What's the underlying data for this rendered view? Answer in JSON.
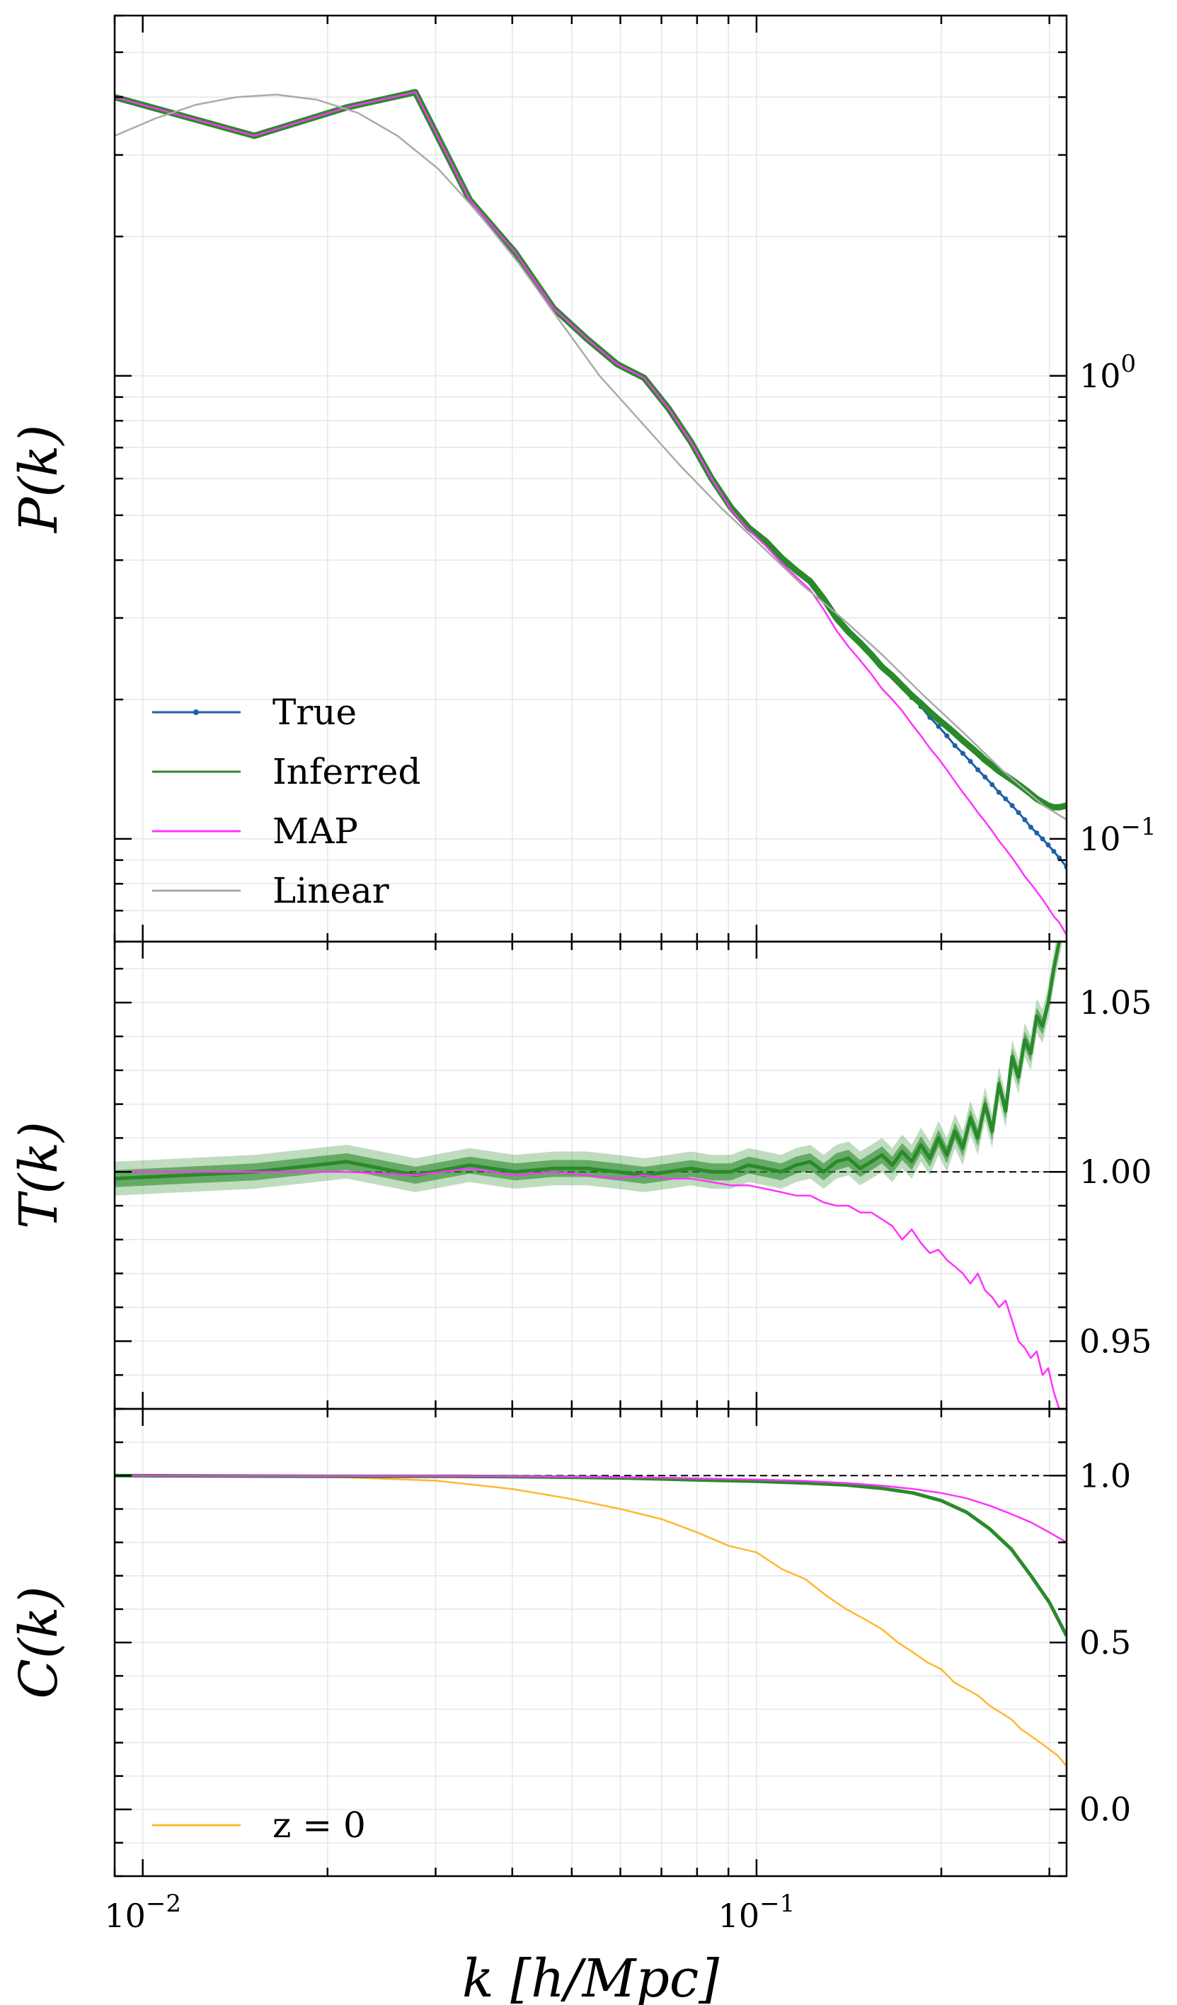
{
  "figure": {
    "xlabel": "k [h/Mpc]",
    "x_ticks": [
      {
        "value": 0.01,
        "base": "10",
        "exp": "−2"
      },
      {
        "value": 0.1,
        "base": "10",
        "exp": "−1"
      }
    ],
    "xlim": [
      0.009,
      0.32
    ],
    "xscale": "log",
    "grid": true
  },
  "chart_data": [
    {
      "panel": "power_spectrum",
      "type": "line",
      "ylabel": "P(k)",
      "yscale": "log",
      "ylim": [
        0.06,
        6.0
      ],
      "y_ticks": [
        {
          "value": 1.0,
          "base": "10",
          "exp": "0"
        },
        {
          "value": 0.1,
          "base": "10",
          "exp": "−1"
        }
      ],
      "legend": {
        "placement": "lower-left",
        "entries": [
          "True",
          "Inferred",
          "MAP",
          "Linear"
        ]
      },
      "series": [
        {
          "name": "True",
          "color": "#1f5fa8",
          "marker": "dot",
          "x": [
            0.009,
            0.0152,
            0.0215,
            0.0278,
            0.0341,
            0.0404,
            0.0467,
            0.053,
            0.0593,
            0.0656,
            0.0719,
            0.0782,
            0.0845,
            0.0908,
            0.0971,
            0.1034,
            0.1097,
            0.116,
            0.1223,
            0.1286,
            0.1349,
            0.1412,
            0.1475,
            0.1538,
            0.1601,
            0.1664,
            0.1727,
            0.179,
            0.1853,
            0.1916,
            0.1979,
            0.2042,
            0.2105,
            0.2168,
            0.2231,
            0.2294,
            0.2357,
            0.242,
            0.2483,
            0.2546,
            0.2609,
            0.2672,
            0.2735,
            0.2798,
            0.2861,
            0.2924,
            0.2987,
            0.305,
            0.3113,
            0.32
          ],
          "y": [
            4.0,
            3.3,
            3.8,
            4.1,
            2.4,
            1.85,
            1.4,
            1.2,
            1.06,
            0.99,
            0.85,
            0.72,
            0.6,
            0.52,
            0.47,
            0.44,
            0.405,
            0.38,
            0.36,
            0.33,
            0.3,
            0.28,
            0.265,
            0.25,
            0.235,
            0.225,
            0.214,
            0.202,
            0.193,
            0.183,
            0.175,
            0.167,
            0.159,
            0.153,
            0.147,
            0.141,
            0.136,
            0.131,
            0.126,
            0.122,
            0.118,
            0.114,
            0.11,
            0.106,
            0.103,
            0.1,
            0.097,
            0.094,
            0.091,
            0.087
          ]
        },
        {
          "name": "Inferred",
          "color": "#2a8a2a",
          "x": [
            0.009,
            0.0152,
            0.0215,
            0.0278,
            0.0341,
            0.0404,
            0.0467,
            0.053,
            0.0593,
            0.0656,
            0.0719,
            0.0782,
            0.0845,
            0.0908,
            0.0971,
            0.1034,
            0.1097,
            0.116,
            0.1223,
            0.1286,
            0.1349,
            0.1412,
            0.1475,
            0.1538,
            0.1601,
            0.1664,
            0.1727,
            0.179,
            0.1853,
            0.1916,
            0.1979,
            0.2042,
            0.2105,
            0.2168,
            0.2231,
            0.2294,
            0.2357,
            0.242,
            0.2483,
            0.2546,
            0.2609,
            0.2672,
            0.2735,
            0.2798,
            0.2861,
            0.2924,
            0.2987,
            0.305,
            0.3113,
            0.32
          ],
          "y": [
            4.0,
            3.3,
            3.8,
            4.1,
            2.4,
            1.85,
            1.4,
            1.2,
            1.06,
            0.99,
            0.85,
            0.72,
            0.6,
            0.52,
            0.47,
            0.44,
            0.405,
            0.38,
            0.36,
            0.33,
            0.3,
            0.28,
            0.265,
            0.25,
            0.235,
            0.225,
            0.214,
            0.204,
            0.196,
            0.188,
            0.181,
            0.175,
            0.169,
            0.163,
            0.158,
            0.153,
            0.148,
            0.144,
            0.14,
            0.137,
            0.134,
            0.131,
            0.128,
            0.125,
            0.122,
            0.12,
            0.118,
            0.117,
            0.117,
            0.118
          ]
        },
        {
          "name": "MAP",
          "color": "#ff33ff",
          "x": [
            0.009,
            0.0152,
            0.0215,
            0.0278,
            0.0341,
            0.0404,
            0.0467,
            0.053,
            0.0593,
            0.0656,
            0.0719,
            0.0782,
            0.0845,
            0.0908,
            0.0971,
            0.1034,
            0.1097,
            0.116,
            0.1223,
            0.1286,
            0.1349,
            0.1412,
            0.1475,
            0.1538,
            0.1601,
            0.1664,
            0.1727,
            0.179,
            0.1853,
            0.1916,
            0.1979,
            0.2042,
            0.2105,
            0.2168,
            0.2231,
            0.2294,
            0.2357,
            0.242,
            0.2483,
            0.2546,
            0.2609,
            0.2672,
            0.2735,
            0.2798,
            0.2861,
            0.2924,
            0.2987,
            0.305,
            0.3113,
            0.32
          ],
          "y": [
            4.0,
            3.3,
            3.8,
            4.1,
            2.4,
            1.85,
            1.4,
            1.2,
            1.06,
            0.99,
            0.85,
            0.72,
            0.6,
            0.515,
            0.465,
            0.43,
            0.395,
            0.368,
            0.345,
            0.313,
            0.282,
            0.26,
            0.243,
            0.227,
            0.211,
            0.2,
            0.189,
            0.177,
            0.167,
            0.157,
            0.149,
            0.141,
            0.133,
            0.126,
            0.12,
            0.114,
            0.109,
            0.104,
            0.099,
            0.095,
            0.091,
            0.087,
            0.083,
            0.08,
            0.077,
            0.074,
            0.071,
            0.068,
            0.066,
            0.062
          ]
        },
        {
          "name": "Linear",
          "color": "#aaaaaa",
          "x": [
            0.009,
            0.0105,
            0.0122,
            0.0142,
            0.0165,
            0.0192,
            0.0224,
            0.026,
            0.0303,
            0.0352,
            0.041,
            0.0477,
            0.0555,
            0.0646,
            0.0751,
            0.0874,
            0.1017,
            0.1183,
            0.1377,
            0.1602,
            0.1864,
            0.2169,
            0.2524,
            0.2937,
            0.32
          ],
          "y": [
            3.3,
            3.6,
            3.85,
            4.0,
            4.05,
            3.95,
            3.7,
            3.3,
            2.8,
            2.25,
            1.75,
            1.32,
            1.0,
            0.8,
            0.64,
            0.52,
            0.43,
            0.355,
            0.3,
            0.25,
            0.205,
            0.17,
            0.14,
            0.118,
            0.11
          ]
        }
      ]
    },
    {
      "panel": "transfer_function",
      "type": "line",
      "ylabel": "T(k)",
      "ylim": [
        0.93,
        1.068
      ],
      "y_ticks": [
        {
          "value": 1.05,
          "label": "1.05"
        },
        {
          "value": 1.0,
          "label": "1.00"
        },
        {
          "value": 0.95,
          "label": "0.95"
        }
      ],
      "reference_line": 1.0,
      "series": [
        {
          "name": "Inferred",
          "color": "#2a8a2a",
          "x": [
            0.009,
            0.0152,
            0.0215,
            0.0278,
            0.0341,
            0.0404,
            0.0467,
            0.053,
            0.0593,
            0.0656,
            0.0719,
            0.0782,
            0.0845,
            0.0908,
            0.0971,
            0.1034,
            0.1097,
            0.116,
            0.1223,
            0.1286,
            0.1349,
            0.1412,
            0.1475,
            0.1538,
            0.1601,
            0.1664,
            0.1727,
            0.179,
            0.1853,
            0.1916,
            0.1979,
            0.2042,
            0.2105,
            0.2168,
            0.2231,
            0.2294,
            0.2357,
            0.242,
            0.2483,
            0.2546,
            0.2609,
            0.2672,
            0.2735,
            0.2798,
            0.2861,
            0.2924,
            0.2987,
            0.305,
            0.3113,
            0.32
          ],
          "y": [
            0.998,
            1.0,
            1.003,
            0.999,
            1.002,
            1.0,
            1.001,
            1.001,
            1.0,
            0.999,
            1.0,
            1.001,
            1.0,
            1.0,
            1.002,
            1.001,
            1.0,
            1.002,
            1.003,
            1.0,
            1.003,
            1.004,
            1.001,
            1.003,
            1.005,
            1.002,
            1.006,
            1.003,
            1.008,
            1.004,
            1.01,
            1.005,
            1.012,
            1.007,
            1.016,
            1.01,
            1.02,
            1.012,
            1.026,
            1.018,
            1.034,
            1.028,
            1.039,
            1.035,
            1.046,
            1.043,
            1.05,
            1.06,
            1.068,
            1.08
          ],
          "band_inner": 0.0025,
          "band_outer": 0.005
        },
        {
          "name": "MAP",
          "color": "#ff33ff",
          "x": [
            0.009,
            0.0152,
            0.0215,
            0.0278,
            0.0341,
            0.0404,
            0.0467,
            0.053,
            0.0593,
            0.0656,
            0.0719,
            0.0782,
            0.0845,
            0.0908,
            0.0971,
            0.1034,
            0.1097,
            0.116,
            0.1223,
            0.1286,
            0.1349,
            0.1412,
            0.1475,
            0.1538,
            0.1601,
            0.1664,
            0.1727,
            0.179,
            0.1853,
            0.1916,
            0.1979,
            0.2042,
            0.2105,
            0.2168,
            0.2231,
            0.2294,
            0.2357,
            0.242,
            0.2483,
            0.2546,
            0.2609,
            0.2672,
            0.2735,
            0.2798,
            0.2861,
            0.2924,
            0.2987,
            0.305,
            0.3113,
            0.32
          ],
          "y": [
            1.0,
            1.0,
            1.0,
            0.999,
            1.001,
            0.999,
            1.0,
            0.999,
            0.998,
            0.999,
            0.998,
            0.998,
            0.997,
            0.996,
            0.996,
            0.995,
            0.994,
            0.993,
            0.993,
            0.991,
            0.99,
            0.99,
            0.988,
            0.988,
            0.986,
            0.984,
            0.98,
            0.983,
            0.979,
            0.976,
            0.977,
            0.974,
            0.972,
            0.97,
            0.967,
            0.97,
            0.965,
            0.963,
            0.96,
            0.962,
            0.956,
            0.95,
            0.948,
            0.945,
            0.947,
            0.94,
            0.942,
            0.935,
            0.93,
            0.926
          ]
        }
      ]
    },
    {
      "panel": "cross_correlation",
      "type": "line",
      "ylabel": "C(k)",
      "ylim": [
        -0.2,
        1.2
      ],
      "y_ticks": [
        {
          "value": 1.0,
          "label": "1.0"
        },
        {
          "value": 0.5,
          "label": "0.5"
        },
        {
          "value": 0.0,
          "label": "0.0"
        }
      ],
      "reference_line": 1.0,
      "legend": {
        "placement": "lower-left",
        "entries": [
          "z = 0"
        ]
      },
      "series": [
        {
          "name": "z = 0",
          "color": "#ffb733",
          "x": [
            0.009,
            0.02,
            0.03,
            0.04,
            0.05,
            0.06,
            0.07,
            0.08,
            0.09,
            0.1,
            0.11,
            0.12,
            0.13,
            0.14,
            0.15,
            0.16,
            0.17,
            0.18,
            0.19,
            0.2,
            0.21,
            0.22,
            0.23,
            0.24,
            0.25,
            0.26,
            0.27,
            0.28,
            0.29,
            0.3,
            0.31,
            0.32
          ],
          "y": [
            1.0,
            0.997,
            0.985,
            0.96,
            0.93,
            0.9,
            0.87,
            0.83,
            0.79,
            0.77,
            0.72,
            0.69,
            0.64,
            0.6,
            0.57,
            0.54,
            0.5,
            0.47,
            0.44,
            0.42,
            0.38,
            0.36,
            0.34,
            0.31,
            0.29,
            0.27,
            0.24,
            0.22,
            0.2,
            0.18,
            0.16,
            0.13
          ]
        },
        {
          "name": "Inferred",
          "color": "#2a8a2a",
          "x": [
            0.009,
            0.02,
            0.03,
            0.04,
            0.05,
            0.06,
            0.07,
            0.08,
            0.09,
            0.1,
            0.12,
            0.14,
            0.16,
            0.18,
            0.2,
            0.22,
            0.24,
            0.26,
            0.28,
            0.3,
            0.32
          ],
          "y": [
            1.0,
            0.998,
            0.998,
            0.997,
            0.995,
            0.993,
            0.99,
            0.987,
            0.985,
            0.983,
            0.978,
            0.972,
            0.962,
            0.948,
            0.925,
            0.89,
            0.84,
            0.78,
            0.7,
            0.62,
            0.52
          ]
        },
        {
          "name": "MAP",
          "color": "#ff33ff",
          "x": [
            0.009,
            0.02,
            0.03,
            0.04,
            0.05,
            0.06,
            0.07,
            0.08,
            0.09,
            0.1,
            0.12,
            0.14,
            0.16,
            0.18,
            0.2,
            0.22,
            0.24,
            0.26,
            0.28,
            0.3,
            0.32
          ],
          "y": [
            1.0,
            0.999,
            0.999,
            0.998,
            0.997,
            0.996,
            0.994,
            0.992,
            0.99,
            0.988,
            0.984,
            0.978,
            0.97,
            0.96,
            0.948,
            0.932,
            0.91,
            0.885,
            0.86,
            0.83,
            0.8
          ]
        }
      ]
    }
  ]
}
